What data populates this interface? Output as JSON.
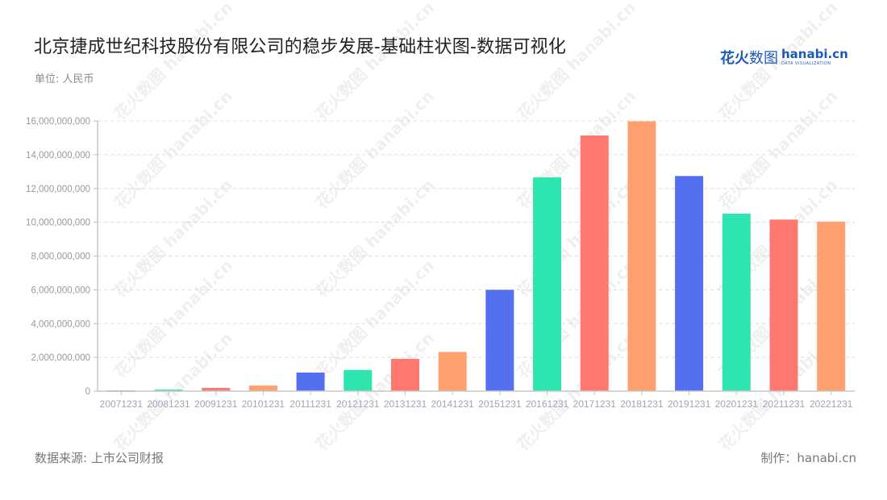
{
  "header": {
    "title": "北京捷成世纪科技股份有限公司的稳步发展-基础柱状图-数据可视化",
    "unit": "单位: 人民币"
  },
  "logo": {
    "cn_bold": "花火",
    "cn_thin": "数图",
    "en": "hanabi.cn",
    "tagline": "DATA VISUALIZATION"
  },
  "footer": {
    "source": "数据来源: 上市公司财报",
    "credit": "制作：hanabi.cn"
  },
  "watermark": "花火数图 hanabi.cn",
  "chart_data": {
    "type": "bar",
    "title": "北京捷成世纪科技股份有限公司的稳步发展-基础柱状图-数据可视化",
    "subtitle": "单位: 人民币",
    "xlabel": "",
    "ylabel": "",
    "categories": [
      "20071231",
      "20081231",
      "20091231",
      "20101231",
      "20111231",
      "20121231",
      "20131231",
      "20141231",
      "20151231",
      "20161231",
      "20171231",
      "20181231",
      "20191231",
      "20201231",
      "20211231",
      "20221231"
    ],
    "values": [
      40000000,
      90000000,
      190000000,
      330000000,
      1100000000,
      1250000000,
      1910000000,
      2320000000,
      6000000000,
      12660000000,
      15140000000,
      15980000000,
      12740000000,
      10510000000,
      10160000000,
      10040000000
    ],
    "colors": [
      "#5470ee",
      "#2ee5b0",
      "#ff7870",
      "#ffa070",
      "#5470ee",
      "#2ee5b0",
      "#ff7870",
      "#ffa070",
      "#5470ee",
      "#2ee5b0",
      "#ff7870",
      "#ffa070",
      "#5470ee",
      "#2ee5b0",
      "#ff7870",
      "#ffa070"
    ],
    "ylim": [
      0,
      16000000000
    ],
    "yticks": [
      "0",
      "2,000,000,000",
      "4,000,000,000",
      "6,000,000,000",
      "8,000,000,000",
      "10,000,000,000",
      "12,000,000,000",
      "14,000,000,000",
      "16,000,000,000"
    ],
    "grid": true,
    "legend": "none"
  }
}
